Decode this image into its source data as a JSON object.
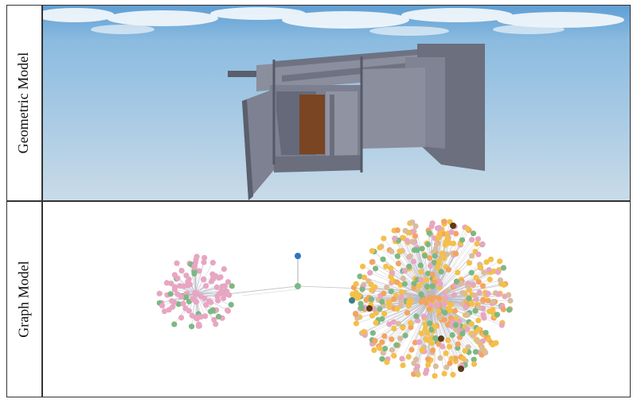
{
  "labels": {
    "geometric": "Geometric Model",
    "graph": "Graph Model"
  },
  "colors": {
    "sky_top": "#5f9fd4",
    "sky_bottom": "#c8dcea",
    "model_gray": "#7b7f8f",
    "model_dark": "#5b5e6c",
    "door_brown": "#7a4522",
    "node_pink": "#e7a6c2",
    "node_green": "#7cb883",
    "node_orange": "#f4a460",
    "node_yellow": "#f3c04a",
    "node_tan": "#d9bca0",
    "node_teal": "#3c7e86",
    "node_blue": "#2f73c2",
    "node_brown": "#5a3a1a"
  },
  "icons": {
    "geometric_render": "3d-building-render",
    "graph_render": "node-link-graph"
  }
}
